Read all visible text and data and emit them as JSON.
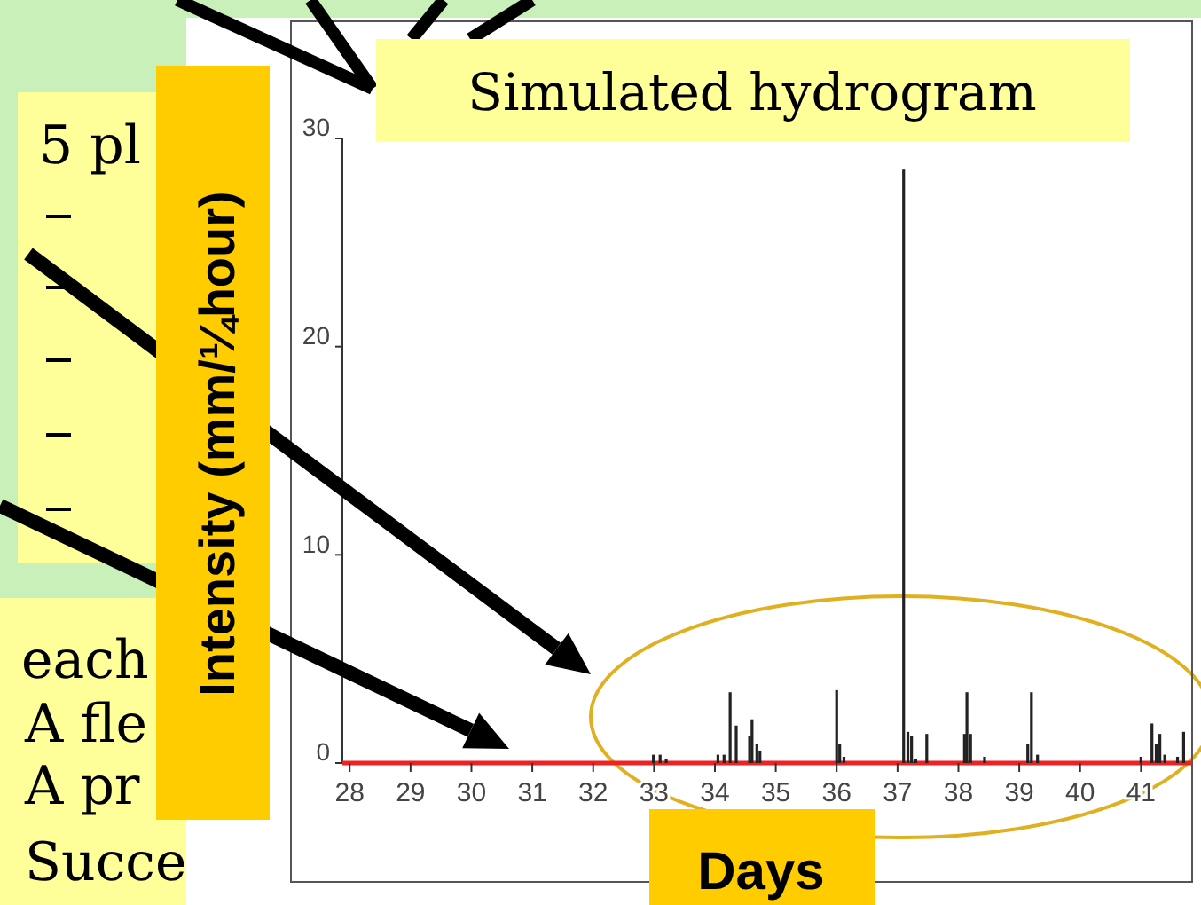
{
  "chart_data": {
    "type": "bar",
    "title": "Simulated hydrogram",
    "xlabel": "Days",
    "ylabel": "Intensity (mm/¼hour)",
    "x": [
      32.99,
      33.1,
      33.2,
      34.05,
      34.15,
      34.25,
      34.35,
      34.57,
      34.61,
      34.69,
      34.74,
      36.0,
      36.05,
      36.12,
      37.1,
      37.17,
      37.23,
      37.3,
      37.48,
      38.1,
      38.14,
      38.2,
      38.43,
      39.14,
      39.2,
      39.3,
      41.0,
      41.18,
      41.25,
      41.31,
      41.39,
      41.6,
      41.7
    ],
    "values": [
      0.4,
      0.4,
      0.2,
      0.4,
      0.4,
      3.4,
      1.8,
      1.3,
      2.1,
      0.9,
      0.6,
      3.5,
      0.9,
      0.3,
      28.5,
      1.5,
      1.3,
      0.2,
      1.4,
      1.4,
      3.4,
      1.4,
      0.3,
      0.9,
      3.4,
      0.4,
      0.3,
      1.9,
      0.9,
      1.4,
      0.4,
      0.3,
      1.5
    ],
    "color": "#222222",
    "xlim": [
      27.88,
      41.84
    ],
    "xticks": [
      28,
      29,
      30,
      31,
      32,
      33,
      34,
      35,
      36,
      37,
      38,
      39,
      40,
      41
    ],
    "ylim": [
      0,
      30
    ],
    "yticks": [
      0,
      10,
      20,
      30
    ],
    "annotations": [
      "5 pl",
      "each",
      "A fle",
      "A pr",
      "Succe"
    ]
  }
}
